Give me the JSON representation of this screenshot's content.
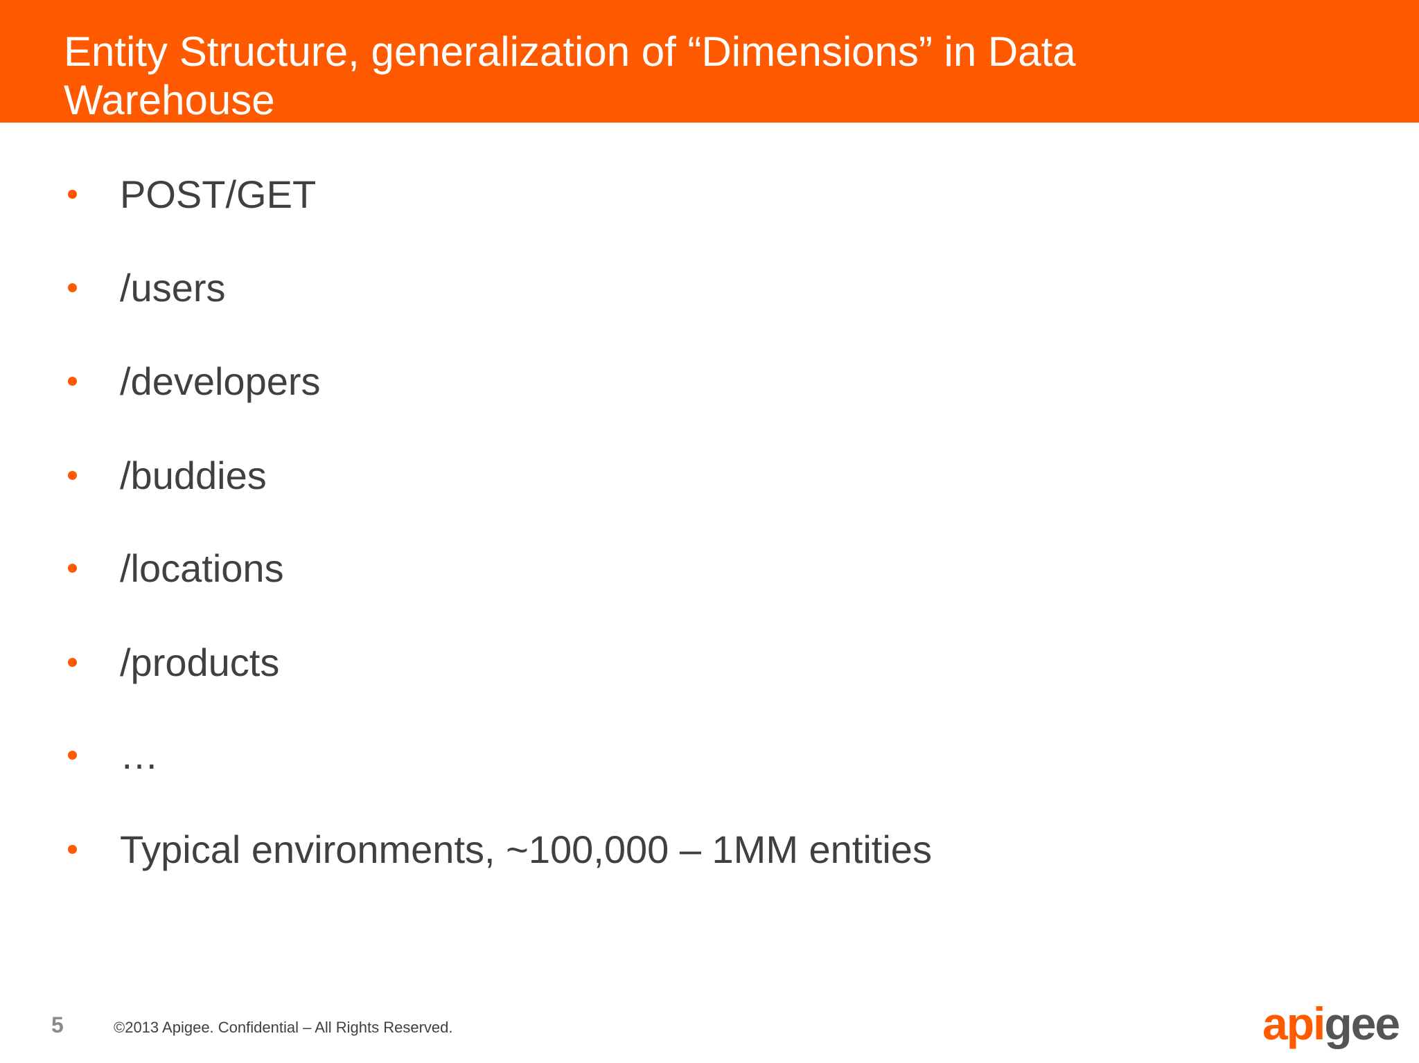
{
  "slide": {
    "title": "Entity Structure, generalization of “Dimensions” in Data Warehouse",
    "bullets": [
      "POST/GET",
      "/users",
      "/developers",
      "/buddies",
      "/locations",
      "/products",
      "…",
      "Typical environments, ~100,000 – 1MM entities"
    ],
    "page_number": "5",
    "footer": "©2013 Apigee. Confidential – All Rights Reserved.",
    "logo": {
      "text": "apigee",
      "part_orange": "api",
      "part_gray": "gee"
    }
  },
  "colors": {
    "accent": "#ff5a00",
    "title_text": "#ffffff",
    "body_text": "#404040",
    "page_number": "#8a8a8a",
    "logo_gray": "#555555"
  }
}
